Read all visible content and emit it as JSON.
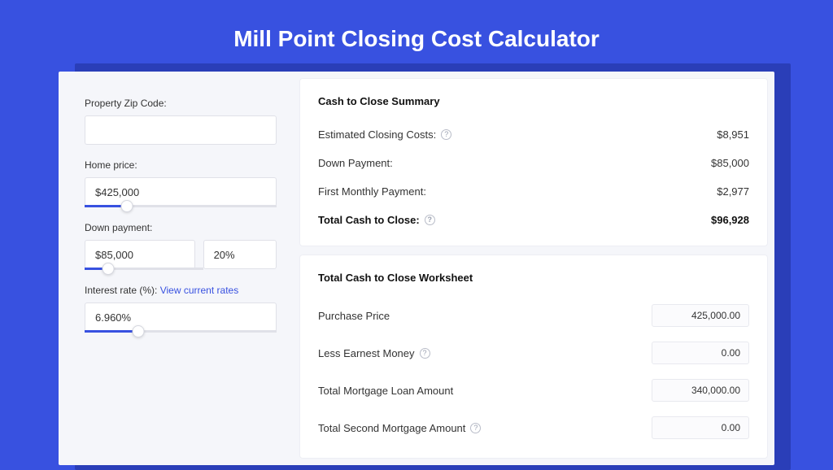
{
  "title": "Mill Point Closing Cost Calculator",
  "colors": {
    "page_bg": "#3851e0",
    "shadow_bg": "#2a3eb8",
    "card_bg": "#f5f6fa",
    "panel_bg": "#ffffff",
    "border": "#e0e1e8",
    "text": "#333333",
    "link": "#3851e0"
  },
  "form": {
    "zip": {
      "label": "Property Zip Code:",
      "value": ""
    },
    "home_price": {
      "label": "Home price:",
      "value": "$425,000",
      "slider_pct": 22
    },
    "down_payment": {
      "label": "Down payment:",
      "amount": "$85,000",
      "percent": "20%",
      "slider_pct": 20
    },
    "interest_rate": {
      "label": "Interest rate (%):",
      "link_text": "View current rates",
      "value": "6.960%",
      "slider_pct": 28
    }
  },
  "summary": {
    "title": "Cash to Close Summary",
    "rows": [
      {
        "label": "Estimated Closing Costs:",
        "help": true,
        "value": "$8,951",
        "bold": false
      },
      {
        "label": "Down Payment:",
        "help": false,
        "value": "$85,000",
        "bold": false
      },
      {
        "label": "First Monthly Payment:",
        "help": false,
        "value": "$2,977",
        "bold": false
      },
      {
        "label": "Total Cash to Close:",
        "help": true,
        "value": "$96,928",
        "bold": true
      }
    ]
  },
  "worksheet": {
    "title": "Total Cash to Close Worksheet",
    "rows": [
      {
        "label": "Purchase Price",
        "help": false,
        "value": "425,000.00"
      },
      {
        "label": "Less Earnest Money",
        "help": true,
        "value": "0.00"
      },
      {
        "label": "Total Mortgage Loan Amount",
        "help": false,
        "value": "340,000.00"
      },
      {
        "label": "Total Second Mortgage Amount",
        "help": true,
        "value": "0.00"
      }
    ]
  }
}
